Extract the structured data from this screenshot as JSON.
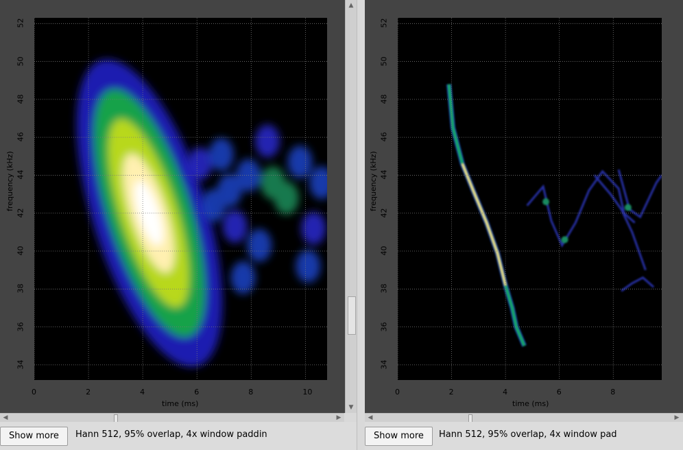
{
  "left_panel": {
    "button_label": "Show more",
    "description": "Hann 512, 95% overlap, 4x window paddin"
  },
  "right_panel": {
    "button_label": "Show more",
    "description": "Hann 512, 95% overlap, 4x window pad"
  },
  "icons": {
    "scroll_left": "◀",
    "scroll_right": "▶",
    "scroll_up": "▲",
    "scroll_down": "▼"
  },
  "chart_data": [
    {
      "type": "heatmap",
      "title": "",
      "xlabel": "time (ms)",
      "ylabel": "frequency (kHz)",
      "xlim": [
        0,
        10.8
      ],
      "ylim": [
        33.2,
        52.3
      ],
      "x_ticks": [
        "0",
        "2",
        "4",
        "6",
        "8",
        "10"
      ],
      "y_ticks": [
        "34",
        "36",
        "38",
        "40",
        "42",
        "44",
        "46",
        "48",
        "50",
        "52"
      ],
      "grid": true,
      "colormap": "black-blue-green-yellow-white",
      "features": [
        {
          "kind": "chirp_blob",
          "t_start": 2.8,
          "f_start": 48.5,
          "t_end": 5.7,
          "f_end": 35.5,
          "peak_t": 4.2,
          "peak_f": 42,
          "intensity": "max"
        },
        {
          "kind": "noise_band",
          "t_start": 5.8,
          "t_end": 10.8,
          "f_low": 38,
          "f_high": 46.5,
          "intensity": "low"
        }
      ]
    },
    {
      "type": "heatmap",
      "title": "",
      "xlabel": "time (ms)",
      "ylabel": "frequency (kHz)",
      "xlim": [
        0,
        9.8
      ],
      "ylim": [
        33.2,
        52.3
      ],
      "x_ticks": [
        "0",
        "2",
        "4",
        "6",
        "8"
      ],
      "y_ticks": [
        "34",
        "36",
        "38",
        "40",
        "42",
        "44",
        "46",
        "48",
        "50",
        "52"
      ],
      "grid": true,
      "colormap": "black-blue-green-yellow-white",
      "features": [
        {
          "kind": "chirp_ridge",
          "t_start": 1.9,
          "f_start": 48.8,
          "t_end": 4.7,
          "f_end": 35,
          "intensity": "max"
        },
        {
          "kind": "sparse_ridges",
          "t_start": 4.6,
          "t_end": 9.8,
          "f_low": 37.8,
          "f_high": 46,
          "intensity": "low"
        }
      ]
    }
  ]
}
